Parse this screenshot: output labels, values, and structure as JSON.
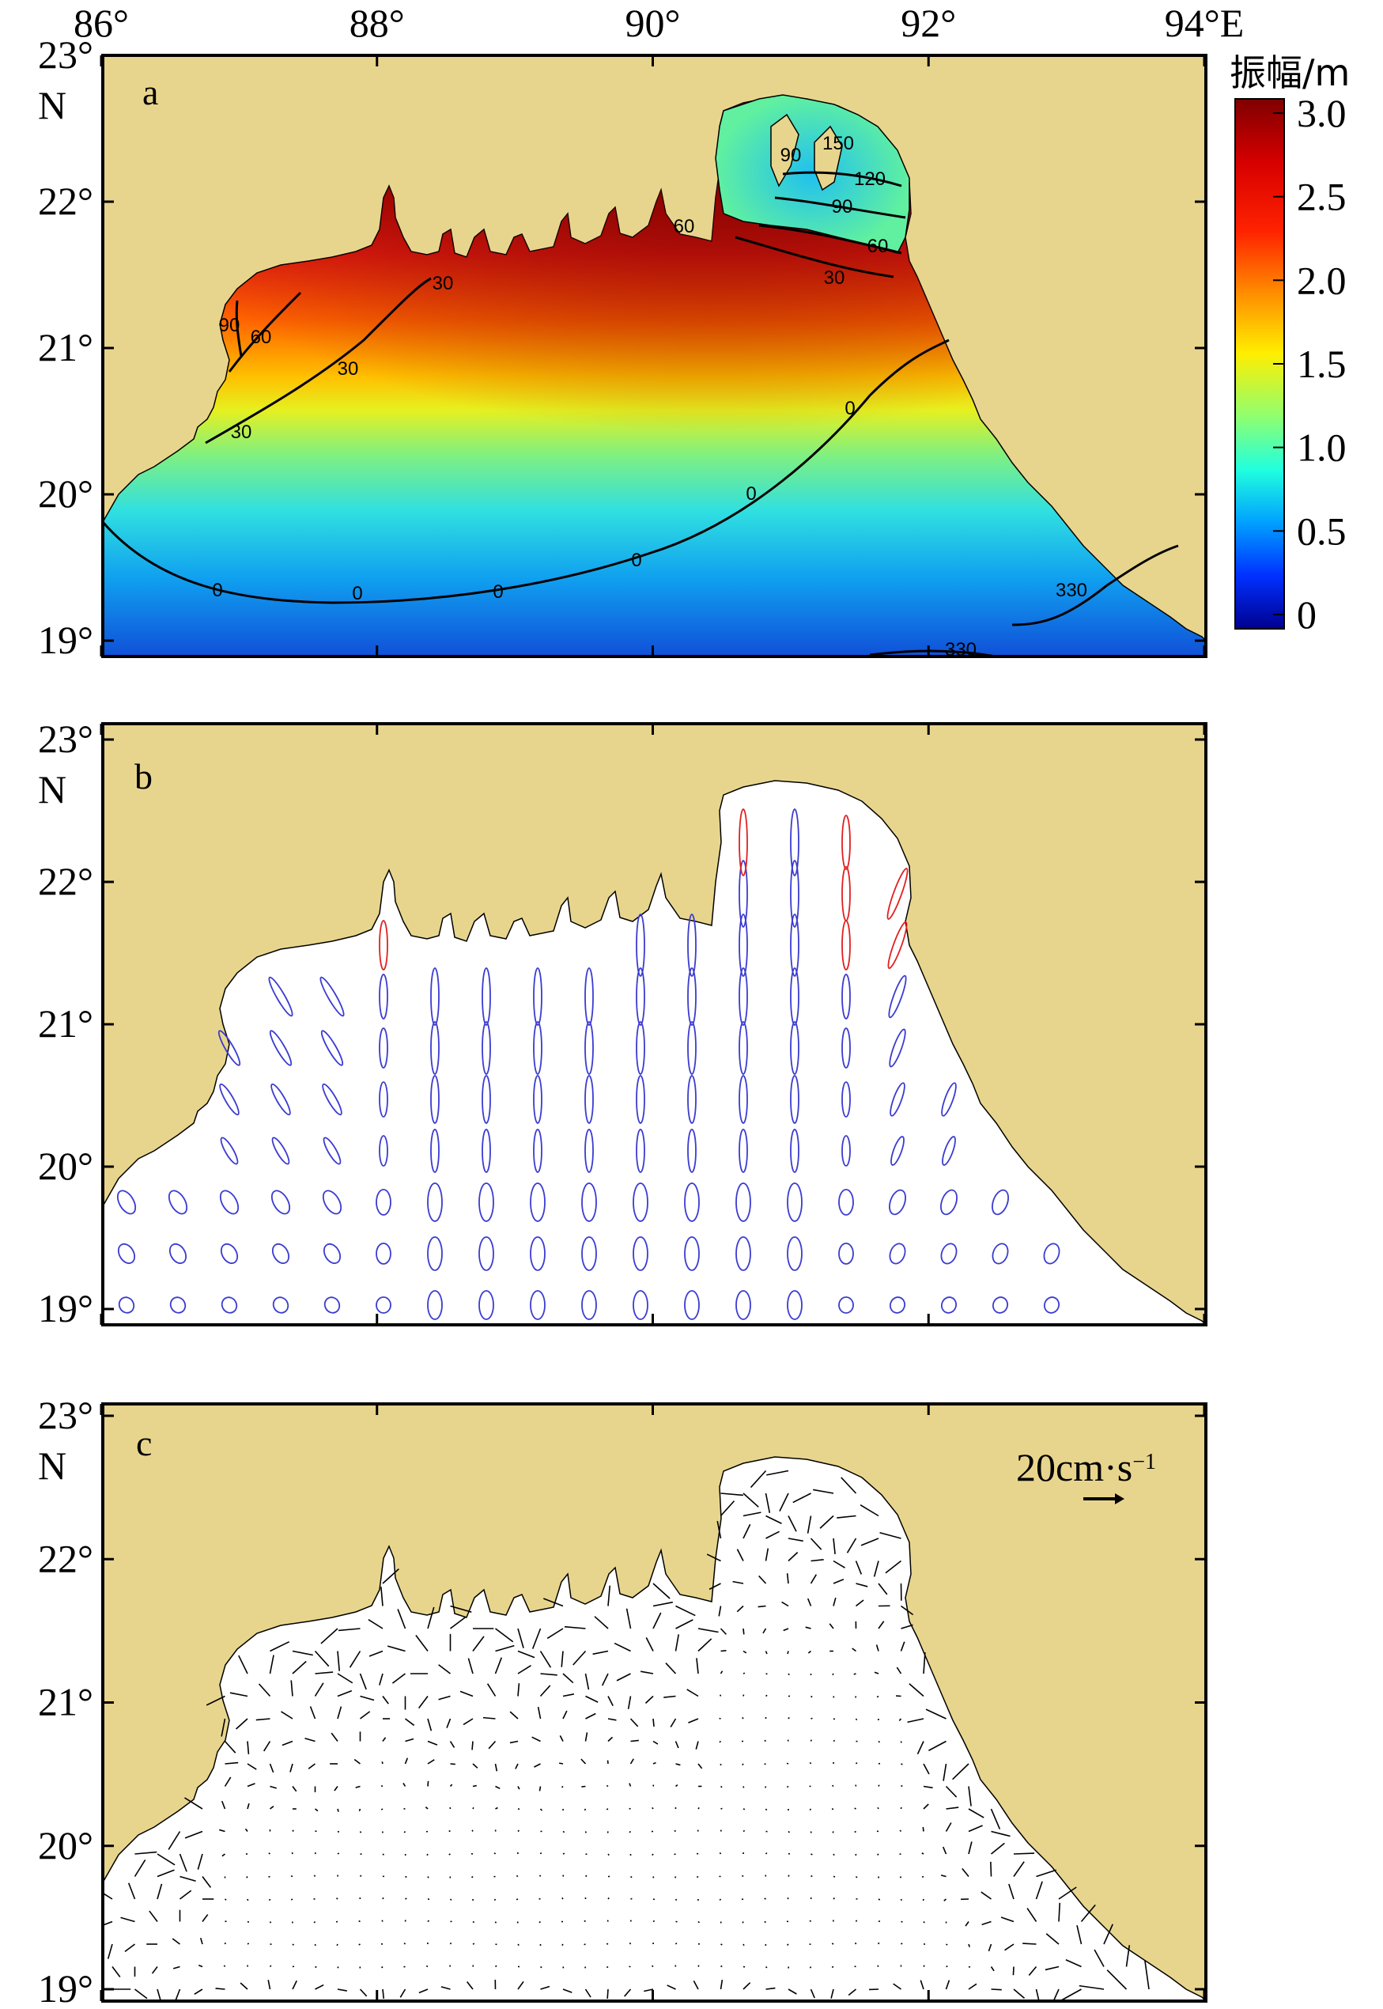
{
  "axes": {
    "lon_ticks": [
      "86°",
      "88°",
      "90°",
      "92°",
      "94°E"
    ],
    "lat_ticks": [
      "23°",
      "22°",
      "21°",
      "20°",
      "19°"
    ],
    "lat_suffix": "N"
  },
  "panels": [
    {
      "letter": "a",
      "content": "tidal amplitude and phase"
    },
    {
      "letter": "b",
      "content": "tidal current ellipses"
    },
    {
      "letter": "c",
      "content": "residual current vectors"
    }
  ],
  "colorbar": {
    "title": "振幅/m",
    "ticks": [
      "3.0",
      "2.5",
      "2.0",
      "1.5",
      "1.0",
      "0.5",
      "0"
    ],
    "range": [
      0,
      3.0
    ],
    "colormap": "jet"
  },
  "cotidal_labels": [
    "0",
    "0",
    "0",
    "0",
    "0",
    "0",
    "30",
    "30",
    "30",
    "30",
    "60",
    "60",
    "60",
    "90",
    "90",
    "90",
    "120",
    "150",
    "330",
    "330"
  ],
  "scale_vector": {
    "label": "20cm·s",
    "exponent": "−1",
    "magnitude_cm_s": 20
  },
  "colors": {
    "land": "#e8d58d",
    "coast": "#000000",
    "ellipse_counterclockwise": "#3b3bd1",
    "ellipse_clockwise": "#e02020",
    "vectors": "#000000"
  }
}
